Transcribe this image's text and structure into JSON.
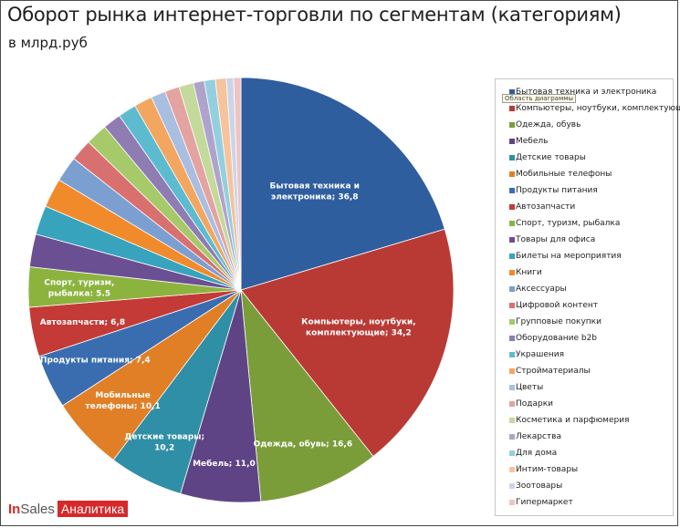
{
  "title": "Оборот рынка интернет-торговли по сегментам (категориям)",
  "subtitle": "в млрд.руб",
  "tooltip": "Область диаграммы",
  "logo": {
    "brand_prefix": "In",
    "brand_suffix": "Sales",
    "tag": "Аналитика"
  },
  "chart_data": {
    "type": "pie",
    "title": "Оборот рынка интернет-торговли по сегментам (категориям)",
    "subtitle": "в млрд.руб",
    "legend_position": "right",
    "categories": [
      "Бытовая техника и электроника",
      "Компьютеры, ноутбуки, комплектующ",
      "Одежда, обувь",
      "Мебель",
      "Детские товары",
      "Мобильные телефоны",
      "Продукты питания",
      "Автозапчасти",
      "Спорт, туризм, рыбалка",
      "Товары для офиса",
      "Билеты на мероприятия",
      "Книги",
      "Аксессуары",
      "Цифровой контент",
      "Групповые покупки",
      "Оборудование  b2b",
      "Украшения",
      "Стройматериалы",
      "Цветы",
      "Подарки",
      "Косметика и парфюмерия",
      "Лекарства",
      "Для дома",
      "Интим-товары",
      "Зоотовары",
      "Гипермаркет"
    ],
    "values": [
      36.8,
      34.2,
      16.6,
      11.0,
      10.2,
      10.1,
      7.4,
      6.8,
      5.5,
      4.5,
      4.0,
      4.0,
      3.5,
      3.0,
      3.0,
      2.5,
      2.5,
      2.5,
      2.0,
      2.0,
      2.0,
      1.5,
      1.5,
      1.5,
      1.0,
      1.0
    ],
    "labels": [
      "Бытовая техника и электроника; 36,8",
      "Компьютеры, ноутбуки, комплектующие; 34,2",
      "Одежда, обувь; 16,6",
      "Мебель; 11,0",
      "Детские товары; 10,2",
      "Мобильные телефоны; 10,1",
      "Продукты питания; 7,4",
      "Автозапчасти; 6,8",
      "Спорт, туризм, рыбалка: 5.5"
    ],
    "colors": [
      "#2f5e9f",
      "#b93a35",
      "#7a9d3a",
      "#5f4485",
      "#2f8fa6",
      "#e17f26",
      "#3a6db0",
      "#c43a36",
      "#8cb33e",
      "#6b4f93",
      "#38a3bd",
      "#f08a2b",
      "#7b9fd0",
      "#d87070",
      "#a6c96a",
      "#8f7cb3",
      "#5dbbd0",
      "#f3a660",
      "#a9bee0",
      "#e3a3a1",
      "#c4d99c",
      "#b0a3cb",
      "#94cfe0",
      "#f6c39c",
      "#cbd5ea",
      "#eec4c2"
    ]
  }
}
